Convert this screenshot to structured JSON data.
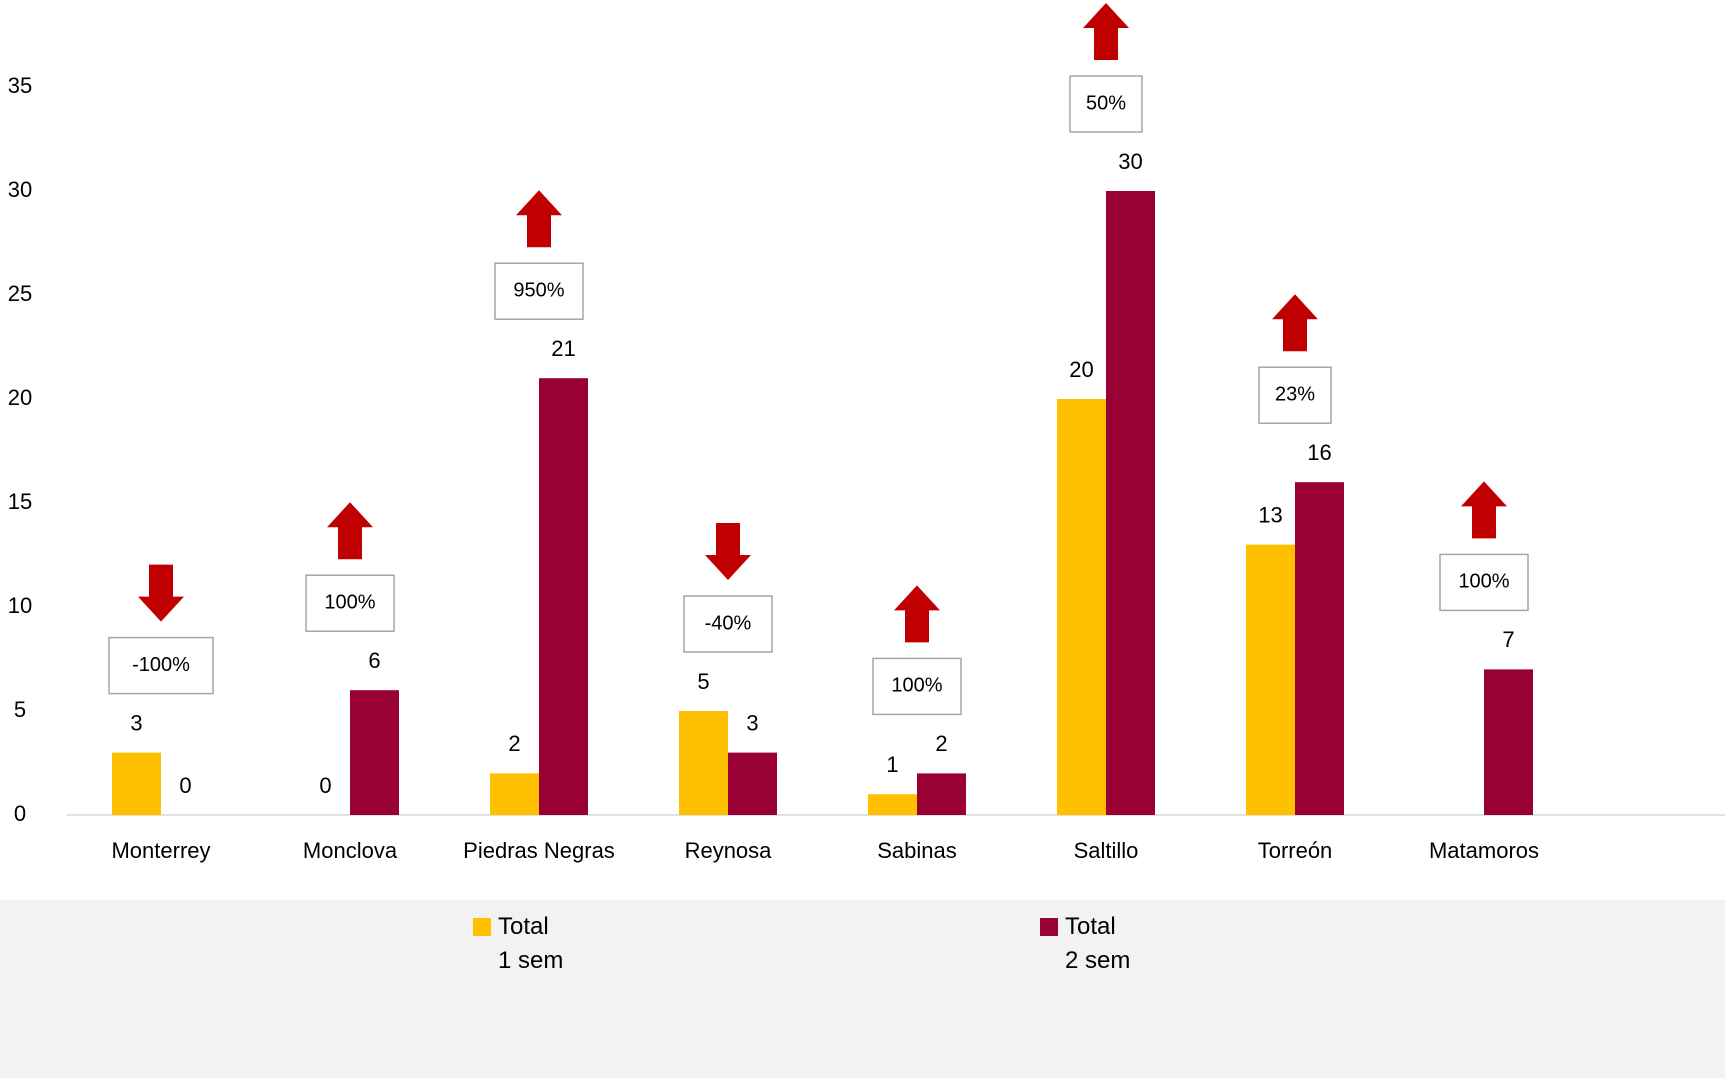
{
  "chart_data": {
    "type": "bar",
    "categories": [
      "Monterrey",
      "Monclova",
      "Piedras Negras",
      "Reynosa",
      "Sabinas",
      "Saltillo",
      "Torreón",
      "Matamoros"
    ],
    "series": [
      {
        "name": "Total 1 sem",
        "color": "#ffc000",
        "values": [
          3,
          0,
          2,
          5,
          1,
          20,
          13,
          null
        ]
      },
      {
        "name": "Total 2 sem",
        "color": "#990033",
        "values": [
          0,
          6,
          21,
          3,
          2,
          30,
          16,
          7
        ]
      }
    ],
    "annotations": [
      {
        "text": "-100%",
        "direction": "down"
      },
      {
        "text": "100%",
        "direction": "up"
      },
      {
        "text": "950%",
        "direction": "up"
      },
      {
        "text": "-40%",
        "direction": "down"
      },
      {
        "text": "100%",
        "direction": "up"
      },
      {
        "text": "50%",
        "direction": "up"
      },
      {
        "text": "23%",
        "direction": "up"
      },
      {
        "text": "100%",
        "direction": "up"
      }
    ],
    "arrow_color": "#c00000",
    "ylim": [
      0,
      35
    ],
    "yticks": [
      0,
      5,
      10,
      15,
      20,
      25,
      30,
      35
    ],
    "grid": false
  }
}
